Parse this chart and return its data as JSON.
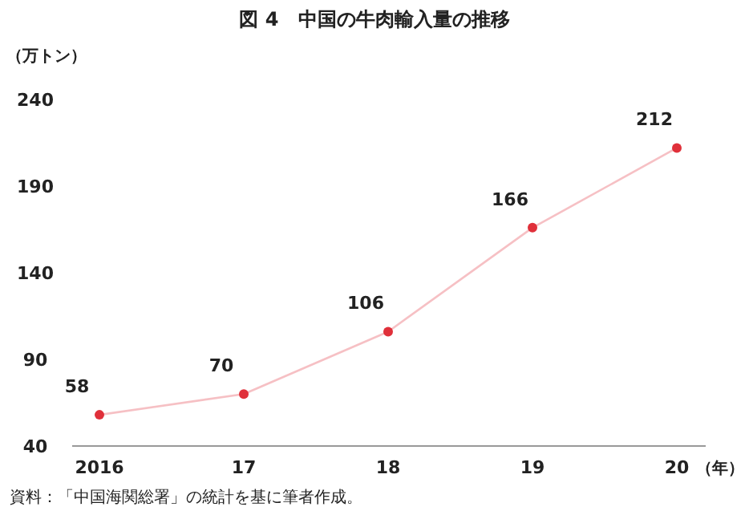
{
  "chart_data": {
    "type": "line",
    "title": "図 4　中国の牛肉輸入量の推移",
    "ylabel": "（万トン）",
    "xlabel": "（年）",
    "categories": [
      "2016",
      "17",
      "18",
      "19",
      "20"
    ],
    "series": [
      {
        "color": "#e0303a",
        "values": [
          58,
          70,
          106,
          166,
          212
        ]
      }
    ],
    "ylim": [
      40,
      240
    ],
    "yticks": [
      40,
      90,
      140,
      190,
      240
    ],
    "grid": false,
    "marker": "circle",
    "line_style": "solid",
    "data_labels": true,
    "annotations": [
      "資料：「中国海関総署」の統計を基に筆者作成。"
    ]
  }
}
